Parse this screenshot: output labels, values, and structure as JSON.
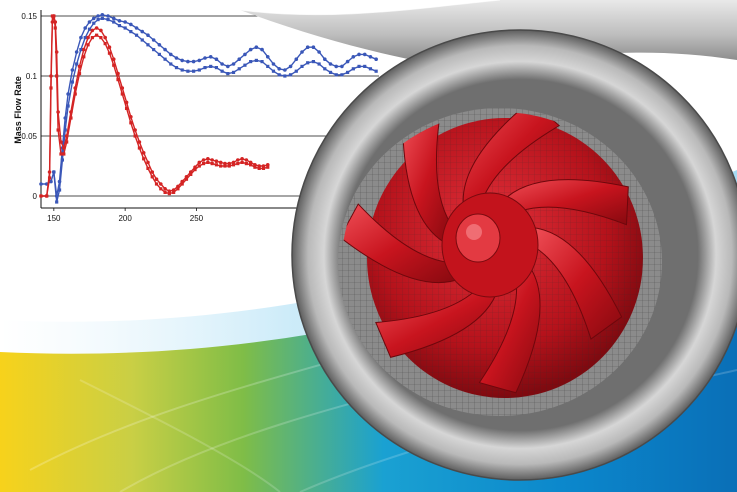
{
  "chart_data": {
    "type": "line",
    "title": "",
    "xlabel": "",
    "ylabel": "Mass Flow Rate",
    "xlim": [
      141,
      378
    ],
    "ylim": [
      -0.01,
      0.155
    ],
    "x_ticks": [
      150,
      200,
      250
    ],
    "y_ticks": [
      0,
      0.05,
      0.1,
      0.15
    ],
    "x_tick_labels": [
      "150",
      "200",
      "250"
    ],
    "y_tick_labels": [
      "0",
      "0.05",
      "0.1",
      "0.15"
    ],
    "grid": "horizontal",
    "series": [
      {
        "color": "#3a57b8",
        "marker": "circle",
        "x": [
          141,
          145,
          148,
          150,
          152,
          154,
          156,
          158,
          160,
          163,
          166,
          169,
          172,
          175,
          178,
          181,
          184,
          188,
          192,
          196,
          200,
          204,
          208,
          212,
          216,
          220,
          224,
          228,
          232,
          236,
          240,
          244,
          248,
          252,
          256,
          260,
          264,
          268,
          272,
          276,
          280,
          284,
          288,
          292,
          296,
          300,
          304,
          308,
          312,
          316,
          320,
          324,
          328,
          332,
          336,
          340,
          344,
          348,
          352,
          356,
          360,
          364,
          368,
          372,
          376
        ],
        "y": [
          0.01,
          0.01,
          0.012,
          0.02,
          0.0,
          0.012,
          0.04,
          0.065,
          0.085,
          0.105,
          0.12,
          0.132,
          0.14,
          0.145,
          0.148,
          0.15,
          0.151,
          0.15,
          0.148,
          0.146,
          0.145,
          0.143,
          0.14,
          0.137,
          0.134,
          0.13,
          0.126,
          0.122,
          0.118,
          0.115,
          0.113,
          0.112,
          0.112,
          0.113,
          0.115,
          0.116,
          0.114,
          0.11,
          0.108,
          0.11,
          0.114,
          0.118,
          0.122,
          0.124,
          0.122,
          0.116,
          0.11,
          0.106,
          0.105,
          0.108,
          0.114,
          0.12,
          0.124,
          0.124,
          0.12,
          0.114,
          0.11,
          0.108,
          0.108,
          0.112,
          0.116,
          0.118,
          0.118,
          0.116,
          0.114
        ]
      },
      {
        "color": "#3a57b8",
        "marker": "square",
        "x": [
          150,
          152,
          154,
          156,
          158,
          160,
          163,
          166,
          169,
          172,
          175,
          178,
          181,
          184,
          188,
          192,
          196,
          200,
          204,
          208,
          212,
          216,
          220,
          224,
          228,
          232,
          236,
          240,
          244,
          248,
          252,
          256,
          260,
          264,
          268,
          272,
          276,
          280,
          284,
          288,
          292,
          296,
          300,
          304,
          308,
          312,
          316,
          320,
          324,
          328,
          332,
          336,
          340,
          344,
          348,
          352,
          356,
          360,
          364,
          368,
          372,
          376
        ],
        "y": [
          0.02,
          -0.005,
          0.005,
          0.03,
          0.055,
          0.075,
          0.095,
          0.11,
          0.122,
          0.132,
          0.139,
          0.144,
          0.147,
          0.148,
          0.147,
          0.145,
          0.142,
          0.14,
          0.137,
          0.134,
          0.13,
          0.126,
          0.122,
          0.118,
          0.114,
          0.11,
          0.107,
          0.105,
          0.104,
          0.104,
          0.105,
          0.107,
          0.108,
          0.107,
          0.104,
          0.102,
          0.103,
          0.106,
          0.109,
          0.112,
          0.113,
          0.112,
          0.108,
          0.104,
          0.101,
          0.1,
          0.101,
          0.104,
          0.108,
          0.111,
          0.112,
          0.11,
          0.106,
          0.103,
          0.101,
          0.101,
          0.103,
          0.106,
          0.108,
          0.108,
          0.106,
          0.104
        ]
      },
      {
        "color": "#d42424",
        "marker": "circle",
        "x": [
          141,
          145,
          147,
          148,
          149,
          150,
          151,
          152,
          153,
          155,
          157,
          159,
          162,
          165,
          168,
          171,
          174,
          177,
          180,
          183,
          186,
          189,
          192,
          195,
          198,
          201,
          204,
          207,
          210,
          213,
          216,
          219,
          222,
          225,
          228,
          231,
          234,
          237,
          240,
          243,
          246,
          249,
          252,
          255,
          258,
          261,
          264,
          267,
          270,
          273,
          276,
          279,
          282,
          285,
          288,
          291,
          294,
          297,
          300
        ],
        "y": [
          0.0,
          0.0,
          0.02,
          0.1,
          0.145,
          0.15,
          0.145,
          0.12,
          0.07,
          0.045,
          0.04,
          0.05,
          0.07,
          0.09,
          0.108,
          0.122,
          0.132,
          0.138,
          0.14,
          0.138,
          0.132,
          0.124,
          0.114,
          0.102,
          0.09,
          0.078,
          0.066,
          0.055,
          0.045,
          0.036,
          0.028,
          0.02,
          0.014,
          0.01,
          0.006,
          0.004,
          0.005,
          0.008,
          0.012,
          0.016,
          0.02,
          0.024,
          0.028,
          0.03,
          0.031,
          0.03,
          0.029,
          0.028,
          0.027,
          0.027,
          0.028,
          0.03,
          0.031,
          0.03,
          0.028,
          0.026,
          0.025,
          0.025,
          0.026
        ]
      },
      {
        "color": "#d42424",
        "marker": "square",
        "x": [
          141,
          145,
          147,
          148,
          149,
          150,
          151,
          152,
          153,
          155,
          157,
          159,
          162,
          165,
          168,
          171,
          174,
          177,
          180,
          183,
          186,
          189,
          192,
          195,
          198,
          201,
          204,
          207,
          210,
          213,
          216,
          219,
          222,
          225,
          228,
          231,
          234,
          237,
          240,
          243,
          246,
          249,
          252,
          255,
          258,
          261,
          264,
          267,
          270,
          273,
          276,
          279,
          282,
          285,
          288,
          291,
          294,
          297,
          300
        ],
        "y": [
          0.0,
          0.0,
          0.015,
          0.09,
          0.15,
          0.15,
          0.14,
          0.1,
          0.055,
          0.035,
          0.035,
          0.045,
          0.065,
          0.085,
          0.102,
          0.116,
          0.126,
          0.132,
          0.134,
          0.132,
          0.127,
          0.119,
          0.109,
          0.097,
          0.085,
          0.073,
          0.061,
          0.05,
          0.04,
          0.031,
          0.023,
          0.016,
          0.01,
          0.006,
          0.003,
          0.002,
          0.003,
          0.006,
          0.01,
          0.014,
          0.018,
          0.022,
          0.025,
          0.027,
          0.028,
          0.027,
          0.026,
          0.025,
          0.025,
          0.025,
          0.026,
          0.027,
          0.028,
          0.027,
          0.026,
          0.024,
          0.023,
          0.023,
          0.024
        ]
      }
    ]
  },
  "illustration": {
    "subject": "pump-impeller",
    "colors": {
      "casing": "#b5b5b5",
      "impeller": "#c8141e",
      "band_blue": "#0e76c2",
      "band_green": "#7cbd3c",
      "band_yellow": "#f5d21a"
    }
  }
}
